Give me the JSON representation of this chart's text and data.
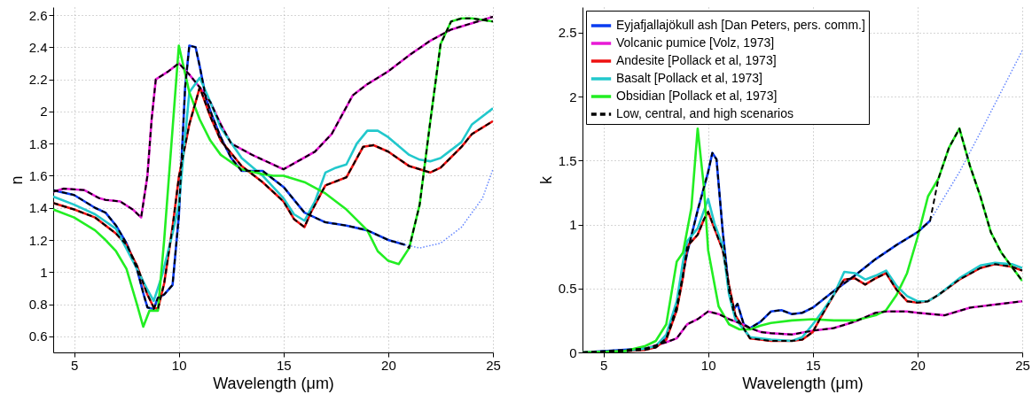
{
  "chart_data": [
    {
      "type": "line",
      "xlabel": "Wavelength (μm)",
      "ylabel": "n",
      "xlim": [
        4,
        25
      ],
      "xticks": [
        5,
        10,
        15,
        20,
        25
      ],
      "ylim": [
        0.5,
        2.65
      ],
      "yticks": [
        0.6,
        0.8,
        1,
        1.2,
        1.4,
        1.6,
        1.8,
        2,
        2.2,
        2.4,
        2.6
      ],
      "grid": true,
      "legend": false,
      "series": [
        {
          "color": "#0a3cf0",
          "x": [
            4,
            5,
            6,
            6.5,
            7,
            7.5,
            8,
            8.3,
            8.5,
            8.8,
            9,
            9.3,
            9.7,
            10,
            10.3,
            10.5,
            10.8,
            11,
            11.3,
            11.6,
            12,
            12.5,
            13,
            13.5,
            14,
            15,
            16,
            17,
            18,
            19,
            20,
            20.8
          ],
          "values": [
            1.51,
            1.48,
            1.4,
            1.37,
            1.29,
            1.18,
            1.02,
            0.87,
            0.78,
            0.77,
            0.84,
            0.86,
            0.92,
            1.35,
            2.15,
            2.41,
            2.4,
            2.28,
            2.08,
            1.97,
            1.84,
            1.71,
            1.63,
            1.63,
            1.63,
            1.53,
            1.37,
            1.31,
            1.29,
            1.26,
            1.2,
            1.17
          ]
        },
        {
          "color": "#e81ad6",
          "x": [
            4,
            4.5,
            5.5,
            6.2,
            6.5,
            7.2,
            7.8,
            8.2,
            8.5,
            8.7,
            8.9,
            9.5,
            10,
            10.5,
            11,
            11.5,
            12,
            12.5,
            13.5,
            14,
            15,
            16.5,
            17.3,
            18.3,
            19,
            20,
            21,
            22,
            23,
            24,
            25
          ],
          "values": [
            1.5,
            1.52,
            1.51,
            1.46,
            1.45,
            1.44,
            1.39,
            1.34,
            1.6,
            1.95,
            2.2,
            2.25,
            2.3,
            2.23,
            2.15,
            2.06,
            1.92,
            1.8,
            1.73,
            1.7,
            1.64,
            1.75,
            1.86,
            2.1,
            2.17,
            2.25,
            2.35,
            2.44,
            2.51,
            2.55,
            2.59
          ]
        },
        {
          "color": "#ee1111",
          "x": [
            4,
            5,
            6,
            7,
            7.5,
            8,
            8.5,
            8.8,
            9,
            9.3,
            9.7,
            10,
            10.5,
            11,
            11.5,
            12,
            13,
            14,
            15,
            15.5,
            16,
            16.3,
            17,
            18,
            18.8,
            19.3,
            20,
            21,
            22,
            22.5,
            23.5,
            24,
            25
          ],
          "values": [
            1.43,
            1.39,
            1.34,
            1.24,
            1.17,
            1.04,
            0.86,
            0.78,
            0.77,
            0.93,
            1.28,
            1.59,
            1.92,
            2.15,
            1.97,
            1.82,
            1.66,
            1.56,
            1.44,
            1.33,
            1.28,
            1.37,
            1.54,
            1.59,
            1.78,
            1.79,
            1.75,
            1.66,
            1.62,
            1.65,
            1.78,
            1.86,
            1.94
          ]
        },
        {
          "color": "#22c8cc",
          "x": [
            4,
            5,
            6,
            7,
            8,
            8.5,
            8.8,
            9.2,
            9.7,
            10,
            10.5,
            11,
            11.5,
            12,
            13,
            14,
            15,
            15.5,
            16,
            16.5,
            17,
            17.5,
            18,
            18.5,
            19,
            19.5,
            20,
            21,
            21.5,
            22,
            22.5,
            23.5,
            24,
            25
          ],
          "values": [
            1.47,
            1.42,
            1.36,
            1.27,
            1.02,
            0.89,
            0.82,
            0.98,
            1.24,
            1.42,
            2.12,
            2.21,
            2.06,
            1.9,
            1.71,
            1.6,
            1.46,
            1.36,
            1.32,
            1.44,
            1.62,
            1.65,
            1.67,
            1.8,
            1.88,
            1.88,
            1.84,
            1.73,
            1.7,
            1.69,
            1.71,
            1.81,
            1.92,
            2.02
          ]
        },
        {
          "color": "#22ee22",
          "x": [
            4,
            5,
            6,
            6.5,
            7,
            7.5,
            8,
            8.3,
            8.6,
            9,
            9.3,
            10,
            10.5,
            11,
            11.5,
            12,
            13,
            14,
            14.5,
            15,
            16,
            17,
            18,
            19,
            19.5,
            20,
            20.5,
            21,
            21.5,
            22,
            22.5,
            23,
            23.5,
            24,
            25
          ],
          "values": [
            1.39,
            1.34,
            1.26,
            1.2,
            1.13,
            1.02,
            0.8,
            0.66,
            0.76,
            0.76,
            1.2,
            2.41,
            2.12,
            1.95,
            1.82,
            1.73,
            1.64,
            1.61,
            1.6,
            1.6,
            1.56,
            1.49,
            1.39,
            1.26,
            1.13,
            1.07,
            1.05,
            1.15,
            1.42,
            1.93,
            2.42,
            2.56,
            2.58,
            2.58,
            2.56
          ]
        },
        {
          "color": "#6688ff",
          "line_style": "dotted",
          "x": [
            20.8,
            21.5,
            22.5,
            23.5,
            24.5,
            25
          ],
          "values": [
            1.17,
            1.15,
            1.18,
            1.28,
            1.46,
            1.64
          ]
        },
        {
          "color": "#000000",
          "line_style": "dashed",
          "x": [
            4,
            4.5,
            5.5,
            6.2,
            6.5,
            7.2,
            7.8,
            8.2,
            8.5,
            8.7,
            8.9,
            9.5,
            10,
            10.5,
            11,
            11.5,
            12,
            12.5,
            13.5,
            14,
            15,
            16.5,
            17.3,
            18.3,
            19,
            20,
            21,
            22,
            23,
            24,
            25
          ],
          "values": [
            1.5,
            1.52,
            1.51,
            1.46,
            1.45,
            1.44,
            1.39,
            1.34,
            1.6,
            1.95,
            2.2,
            2.25,
            2.3,
            2.23,
            2.15,
            2.06,
            1.92,
            1.8,
            1.73,
            1.7,
            1.64,
            1.75,
            1.86,
            2.1,
            2.17,
            2.25,
            2.35,
            2.44,
            2.51,
            2.55,
            2.59
          ]
        },
        {
          "color": "#000000",
          "line_style": "dashed",
          "x": [
            4,
            5,
            6,
            7,
            7.5,
            8,
            8.5,
            8.8,
            9,
            9.3,
            9.7,
            10,
            10.5,
            11,
            11.5,
            12,
            13,
            14,
            15,
            15.5,
            16,
            16.3,
            17,
            18,
            18.8,
            19.3,
            20,
            21,
            22,
            22.5,
            23.5,
            24,
            25
          ],
          "values": [
            1.43,
            1.39,
            1.34,
            1.24,
            1.17,
            1.04,
            0.86,
            0.78,
            0.77,
            0.93,
            1.28,
            1.59,
            1.92,
            2.15,
            1.97,
            1.82,
            1.66,
            1.56,
            1.44,
            1.33,
            1.28,
            1.37,
            1.54,
            1.59,
            1.78,
            1.79,
            1.75,
            1.66,
            1.62,
            1.65,
            1.78,
            1.86,
            1.94
          ]
        },
        {
          "color": "#000000",
          "line_style": "dashed",
          "x": [
            4,
            5,
            6,
            6.5,
            7,
            7.5,
            8,
            8.3,
            8.5,
            8.8,
            9,
            9.3,
            9.7,
            10,
            10.3,
            10.5,
            10.8,
            11,
            11.3,
            11.6,
            12,
            12.5,
            13,
            13.5,
            14,
            15,
            16,
            17,
            18,
            19,
            20,
            20.8,
            21,
            21.5,
            22,
            22.5,
            23,
            23.5,
            24,
            25
          ],
          "values": [
            1.51,
            1.48,
            1.4,
            1.37,
            1.29,
            1.18,
            1.02,
            0.87,
            0.78,
            0.77,
            0.84,
            0.86,
            0.92,
            1.35,
            2.15,
            2.41,
            2.4,
            2.28,
            2.08,
            1.97,
            1.84,
            1.71,
            1.63,
            1.63,
            1.63,
            1.53,
            1.37,
            1.31,
            1.29,
            1.26,
            1.2,
            1.17,
            1.15,
            1.42,
            1.93,
            2.42,
            2.56,
            2.58,
            2.58,
            2.56
          ]
        }
      ]
    },
    {
      "type": "line",
      "xlabel": "Wavelength (μm)",
      "ylabel": "k",
      "xlim": [
        4,
        25
      ],
      "xticks": [
        5,
        10,
        15,
        20,
        25
      ],
      "ylim": [
        0,
        2.7
      ],
      "yticks": [
        0,
        0.5,
        1,
        1.5,
        2,
        2.5
      ],
      "grid": true,
      "legend": "top left",
      "series": [
        {
          "name": "Eyjafjallajökull ash [Dan Peters, pers. comm.]",
          "color": "#0a3cf0",
          "x": [
            4,
            5,
            6,
            7,
            7.5,
            8,
            8.5,
            9,
            9.5,
            10,
            10.2,
            10.4,
            10.7,
            11,
            11.2,
            11.4,
            11.7,
            12,
            12.5,
            13,
            13.5,
            14,
            14.5,
            15,
            16,
            17,
            18,
            19,
            20,
            20.6
          ],
          "values": [
            0,
            0.01,
            0.02,
            0.03,
            0.04,
            0.11,
            0.36,
            0.78,
            1.11,
            1.41,
            1.56,
            1.51,
            0.94,
            0.48,
            0.33,
            0.38,
            0.22,
            0.19,
            0.24,
            0.32,
            0.33,
            0.3,
            0.31,
            0.35,
            0.48,
            0.6,
            0.73,
            0.84,
            0.94,
            1.03
          ]
        },
        {
          "name": "Volcanic pumice [Volz, 1973]",
          "color": "#e81ad6",
          "x": [
            7,
            8,
            8.5,
            9,
            9.5,
            10,
            10.5,
            11,
            11.5,
            12,
            12.5,
            13,
            14,
            15,
            16,
            17,
            18,
            18.5,
            19.5,
            20,
            21.3,
            22.5,
            23.5,
            25
          ],
          "values": [
            0.03,
            0.08,
            0.11,
            0.22,
            0.26,
            0.32,
            0.3,
            0.26,
            0.23,
            0.19,
            0.16,
            0.15,
            0.14,
            0.17,
            0.19,
            0.24,
            0.31,
            0.32,
            0.32,
            0.31,
            0.29,
            0.35,
            0.37,
            0.4
          ]
        },
        {
          "name": "Andesite [Pollack et al, 1973]",
          "color": "#ee1111",
          "x": [
            4,
            6,
            7,
            7.5,
            8,
            8.5,
            8.8,
            9,
            9.5,
            9.8,
            10,
            10.3,
            10.7,
            11,
            11.3,
            12,
            12.5,
            13,
            14,
            14.5,
            15,
            15.5,
            16,
            16.5,
            17,
            17.5,
            18,
            18.5,
            19,
            19.5,
            20,
            20.5,
            21,
            22,
            23,
            23.7,
            24.5,
            25
          ],
          "values": [
            0,
            0.01,
            0.02,
            0.04,
            0.1,
            0.33,
            0.59,
            0.83,
            0.92,
            1.04,
            1.1,
            0.97,
            0.8,
            0.52,
            0.29,
            0.11,
            0.1,
            0.09,
            0.09,
            0.1,
            0.16,
            0.31,
            0.45,
            0.57,
            0.58,
            0.53,
            0.58,
            0.62,
            0.49,
            0.4,
            0.39,
            0.4,
            0.45,
            0.57,
            0.66,
            0.69,
            0.67,
            0.64
          ]
        },
        {
          "name": "Basalt [Pollack et al, 1973]",
          "color": "#22c8cc",
          "x": [
            4,
            6,
            7,
            7.5,
            8,
            8.5,
            8.8,
            9,
            9.5,
            10,
            10.3,
            10.7,
            11,
            11.3,
            12,
            13,
            14,
            14.5,
            15,
            15.5,
            16,
            16.5,
            17,
            17.5,
            18,
            18.5,
            19,
            19.5,
            20,
            20.5,
            21,
            22,
            23,
            23.7,
            24.5,
            25
          ],
          "values": [
            0,
            0.01,
            0.03,
            0.05,
            0.14,
            0.4,
            0.71,
            0.87,
            0.97,
            1.2,
            1.01,
            0.83,
            0.45,
            0.26,
            0.12,
            0.1,
            0.09,
            0.12,
            0.22,
            0.33,
            0.45,
            0.63,
            0.62,
            0.57,
            0.6,
            0.64,
            0.52,
            0.44,
            0.4,
            0.4,
            0.45,
            0.58,
            0.68,
            0.7,
            0.69,
            0.66
          ]
        },
        {
          "name": "Obsidian [Pollack et al, 1973]",
          "color": "#22ee22",
          "x": [
            4,
            6,
            7,
            7.5,
            8,
            8.5,
            8.8,
            9.2,
            9.5,
            9.8,
            10,
            10.5,
            11,
            11.5,
            12,
            12.5,
            13,
            14,
            15,
            16,
            17,
            18,
            18.5,
            19,
            19.5,
            20,
            20.5,
            21,
            21.5,
            22,
            22.5,
            23,
            23.5,
            24,
            25
          ],
          "values": [
            0,
            0.01,
            0.05,
            0.09,
            0.22,
            0.71,
            0.78,
            1.13,
            1.75,
            1.29,
            0.8,
            0.36,
            0.22,
            0.18,
            0.18,
            0.21,
            0.23,
            0.25,
            0.26,
            0.25,
            0.25,
            0.29,
            0.33,
            0.45,
            0.62,
            0.9,
            1.22,
            1.36,
            1.6,
            1.75,
            1.46,
            1.22,
            0.94,
            0.78,
            0.56
          ]
        },
        {
          "color": "#6688ff",
          "line_style": "dotted",
          "x": [
            20.6,
            22,
            23,
            24,
            25
          ],
          "values": [
            1.03,
            1.41,
            1.72,
            2.04,
            2.36
          ]
        },
        {
          "name": "Low, central, and high scenarios",
          "color": "#000000",
          "line_style": "dashed",
          "x": [
            4,
            6,
            7,
            8,
            8.5,
            9,
            9.5,
            10,
            10.5,
            11,
            11.5,
            12,
            12.5,
            13,
            14,
            15,
            16,
            17,
            18,
            18.5,
            19.5,
            20,
            21.3,
            22.5,
            23.5,
            25
          ],
          "values": [
            0,
            0.01,
            0.03,
            0.08,
            0.11,
            0.22,
            0.26,
            0.32,
            0.3,
            0.26,
            0.23,
            0.19,
            0.16,
            0.15,
            0.14,
            0.17,
            0.19,
            0.24,
            0.31,
            0.32,
            0.32,
            0.31,
            0.29,
            0.35,
            0.37,
            0.4
          ]
        },
        {
          "color": "#000000",
          "line_style": "dashed",
          "x": [
            4,
            6,
            7,
            7.5,
            8,
            8.5,
            8.8,
            9,
            9.5,
            9.8,
            10,
            10.3,
            10.7,
            11,
            11.3,
            12,
            12.5,
            13,
            14,
            14.5,
            15,
            15.5,
            16,
            16.5,
            17,
            17.5,
            18,
            18.5,
            19,
            19.5,
            20,
            20.5,
            21,
            22,
            23,
            23.7,
            24.5,
            25
          ],
          "values": [
            0,
            0.01,
            0.02,
            0.04,
            0.1,
            0.33,
            0.59,
            0.83,
            0.92,
            1.04,
            1.1,
            0.97,
            0.8,
            0.52,
            0.29,
            0.11,
            0.1,
            0.09,
            0.09,
            0.1,
            0.16,
            0.31,
            0.45,
            0.57,
            0.58,
            0.53,
            0.58,
            0.62,
            0.49,
            0.4,
            0.39,
            0.4,
            0.45,
            0.57,
            0.66,
            0.69,
            0.67,
            0.64
          ]
        },
        {
          "color": "#000000",
          "line_style": "dashed",
          "x": [
            4,
            5,
            6,
            7,
            7.5,
            8,
            8.5,
            9,
            9.5,
            10,
            10.2,
            10.4,
            10.7,
            11,
            11.2,
            11.4,
            11.7,
            12,
            12.5,
            13,
            13.5,
            14,
            14.5,
            15,
            16,
            17,
            18,
            19,
            20,
            20.6,
            21,
            21.5,
            22,
            22.5,
            23,
            23.5,
            24,
            25
          ],
          "values": [
            0,
            0.01,
            0.02,
            0.03,
            0.04,
            0.11,
            0.36,
            0.78,
            1.11,
            1.41,
            1.56,
            1.51,
            0.94,
            0.48,
            0.33,
            0.38,
            0.22,
            0.19,
            0.24,
            0.32,
            0.33,
            0.3,
            0.31,
            0.35,
            0.48,
            0.6,
            0.73,
            0.84,
            0.94,
            1.03,
            1.36,
            1.6,
            1.75,
            1.46,
            1.22,
            0.94,
            0.78,
            0.56
          ]
        }
      ]
    }
  ]
}
